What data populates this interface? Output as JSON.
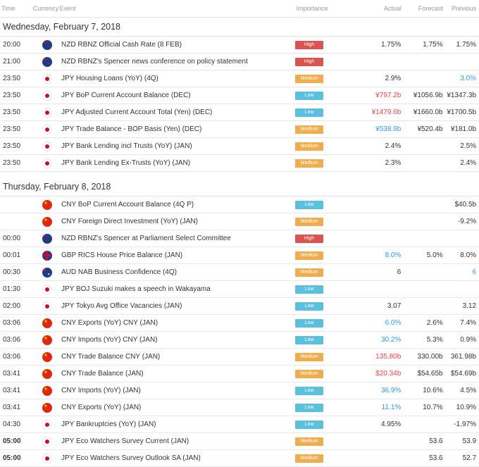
{
  "header": {
    "time": "Time",
    "currency": "Currency",
    "event": "Event",
    "importance": "Importance",
    "actual": "Actual",
    "forecast": "Forecast",
    "previous": "Previous"
  },
  "sections": [
    {
      "title": "Wednesday, February 7, 2018",
      "rows": [
        {
          "time": "20:00",
          "currency_icon": "nz-flag-icon",
          "flag": "nz",
          "event": "NZD RBNZ Official Cash Rate (8 FEB)",
          "importance": "High",
          "actual": "1.75%",
          "forecast": "1.75%",
          "previous": "1.75%"
        },
        {
          "time": "21:00",
          "currency_icon": "nz-flag-icon",
          "flag": "nz",
          "event": "NZD RBNZ's Spencer news conference on policy statement",
          "importance": "High",
          "actual": "",
          "forecast": "",
          "previous": ""
        },
        {
          "time": "23:50",
          "currency_icon": "jp-flag-icon",
          "flag": "jp",
          "event": "JPY Housing Loans (YoY) (4Q)",
          "importance": "Medium",
          "actual": "2.9%",
          "forecast": "",
          "previous": "3.0%",
          "previous_color": "blue"
        },
        {
          "time": "23:50",
          "currency_icon": "jp-flag-icon",
          "flag": "jp",
          "event": "JPY BoP Current Account Balance (DEC)",
          "importance": "Low",
          "actual": "¥797.2b",
          "actual_color": "red",
          "forecast": "¥1056.9b",
          "previous": "¥1347.3b"
        },
        {
          "time": "23:50",
          "currency_icon": "jp-flag-icon",
          "flag": "jp",
          "event": "JPY Adjusted Current Account Total (Yen) (DEC)",
          "importance": "Low",
          "actual": "¥1479.6b",
          "actual_color": "red",
          "forecast": "¥1660.0b",
          "previous": "¥1700.5b"
        },
        {
          "time": "23:50",
          "currency_icon": "jp-flag-icon",
          "flag": "jp",
          "event": "JPY Trade Balance - BOP Basis (Yen) (DEC)",
          "importance": "Medium",
          "actual": "¥538.9b",
          "actual_color": "blue",
          "forecast": "¥520.4b",
          "previous": "¥181.0b"
        },
        {
          "time": "23:50",
          "currency_icon": "jp-flag-icon",
          "flag": "jp",
          "event": "JPY Bank Lending incl Trusts (YoY) (JAN)",
          "importance": "Medium",
          "actual": "2.4%",
          "forecast": "",
          "previous": "2.5%"
        },
        {
          "time": "23:50",
          "currency_icon": "jp-flag-icon",
          "flag": "jp",
          "event": "JPY Bank Lending Ex-Trusts (YoY) (JAN)",
          "importance": "Medium",
          "actual": "2.3%",
          "forecast": "",
          "previous": "2.4%"
        }
      ]
    },
    {
      "title": "Thursday, February 8, 2018",
      "rows": [
        {
          "time": "",
          "currency_icon": "cn-flag-icon",
          "flag": "cn",
          "event": "CNY BoP Current Account Balance (4Q P)",
          "importance": "Low",
          "actual": "",
          "forecast": "",
          "previous": "$40.5b"
        },
        {
          "time": "",
          "currency_icon": "cn-flag-icon",
          "flag": "cn",
          "event": "CNY Foreign Direct Investment (YoY) (JAN)",
          "importance": "Medium",
          "actual": "",
          "forecast": "",
          "previous": "-9.2%"
        },
        {
          "time": "00:00",
          "currency_icon": "nz-flag-icon",
          "flag": "nz",
          "event": "NZD RBNZ's Spencer at Parliament Select Committee",
          "importance": "High",
          "actual": "",
          "forecast": "",
          "previous": ""
        },
        {
          "time": "00:01",
          "currency_icon": "gb-flag-icon",
          "flag": "gb",
          "event": "GBP RICS House Price Balance (JAN)",
          "importance": "Medium",
          "actual": "8.0%",
          "actual_color": "blue",
          "forecast": "5.0%",
          "previous": "8.0%"
        },
        {
          "time": "00:30",
          "currency_icon": "au-flag-icon",
          "flag": "au",
          "event": "AUD NAB Business Confidence (4Q)",
          "importance": "Medium",
          "actual": "6",
          "forecast": "",
          "previous": "6",
          "previous_color": "blue"
        },
        {
          "time": "01:30",
          "currency_icon": "jp-flag-icon",
          "flag": "jp",
          "event": "JPY BOJ Suzuki makes a speech in Wakayama",
          "importance": "Low",
          "actual": "",
          "forecast": "",
          "previous": ""
        },
        {
          "time": "02:00",
          "currency_icon": "jp-flag-icon",
          "flag": "jp",
          "event": "JPY Tokyo Avg Office Vacancies (JAN)",
          "importance": "Low",
          "actual": "3.07",
          "forecast": "",
          "previous": "3.12"
        },
        {
          "time": "03:06",
          "currency_icon": "cn-flag-icon",
          "flag": "cn",
          "event": "CNY Exports (YoY) CNY (JAN)",
          "importance": "Low",
          "actual": "6.0%",
          "actual_color": "blue",
          "forecast": "2.6%",
          "previous": "7.4%"
        },
        {
          "time": "03:06",
          "currency_icon": "cn-flag-icon",
          "flag": "cn",
          "event": "CNY Imports (YoY) CNY (JAN)",
          "importance": "Low",
          "actual": "30.2%",
          "actual_color": "blue",
          "forecast": "5.3%",
          "previous": "0.9%"
        },
        {
          "time": "03:06",
          "currency_icon": "cn-flag-icon",
          "flag": "cn",
          "event": "CNY Trade Balance CNY (JAN)",
          "importance": "Medium",
          "actual": "135.80b",
          "actual_color": "red",
          "forecast": "330.00b",
          "previous": "361.98b"
        },
        {
          "time": "03:41",
          "currency_icon": "cn-flag-icon",
          "flag": "cn",
          "event": "CNY Trade Balance (JAN)",
          "importance": "Medium",
          "actual": "$20.34b",
          "actual_color": "red",
          "forecast": "$54.65b",
          "previous": "$54.69b"
        },
        {
          "time": "03:41",
          "currency_icon": "cn-flag-icon",
          "flag": "cn",
          "event": "CNY Imports (YoY) (JAN)",
          "importance": "Low",
          "actual": "36.9%",
          "actual_color": "blue",
          "forecast": "10.6%",
          "previous": "4.5%"
        },
        {
          "time": "03:41",
          "currency_icon": "cn-flag-icon",
          "flag": "cn",
          "event": "CNY Exports (YoY) (JAN)",
          "importance": "Low",
          "actual": "11.1%",
          "actual_color": "blue",
          "forecast": "10.7%",
          "previous": "10.9%"
        },
        {
          "time": "04:30",
          "currency_icon": "jp-flag-icon",
          "flag": "jp",
          "event": "JPY Bankruptcies (YoY) (JAN)",
          "importance": "Low",
          "actual": "4.95%",
          "forecast": "",
          "previous": "-1.97%"
        },
        {
          "time": "05:00",
          "time_bold": true,
          "currency_icon": "jp-flag-icon",
          "flag": "jp",
          "event": "JPY Eco Watchers Survey Current (JAN)",
          "importance": "Medium",
          "actual": "",
          "forecast": "53.6",
          "previous": "53.9"
        },
        {
          "time": "05:00",
          "time_bold": true,
          "currency_icon": "jp-flag-icon",
          "flag": "jp",
          "event": "JPY Eco Watchers Survey Outlook SA (JAN)",
          "importance": "Medium",
          "actual": "",
          "forecast": "53.6",
          "previous": "52.7"
        }
      ]
    }
  ],
  "colors": {
    "high": "#d9534f",
    "medium": "#f0ad4e",
    "low": "#5bc0de",
    "negative": "#e8424a",
    "positive": "#2d9be0"
  }
}
